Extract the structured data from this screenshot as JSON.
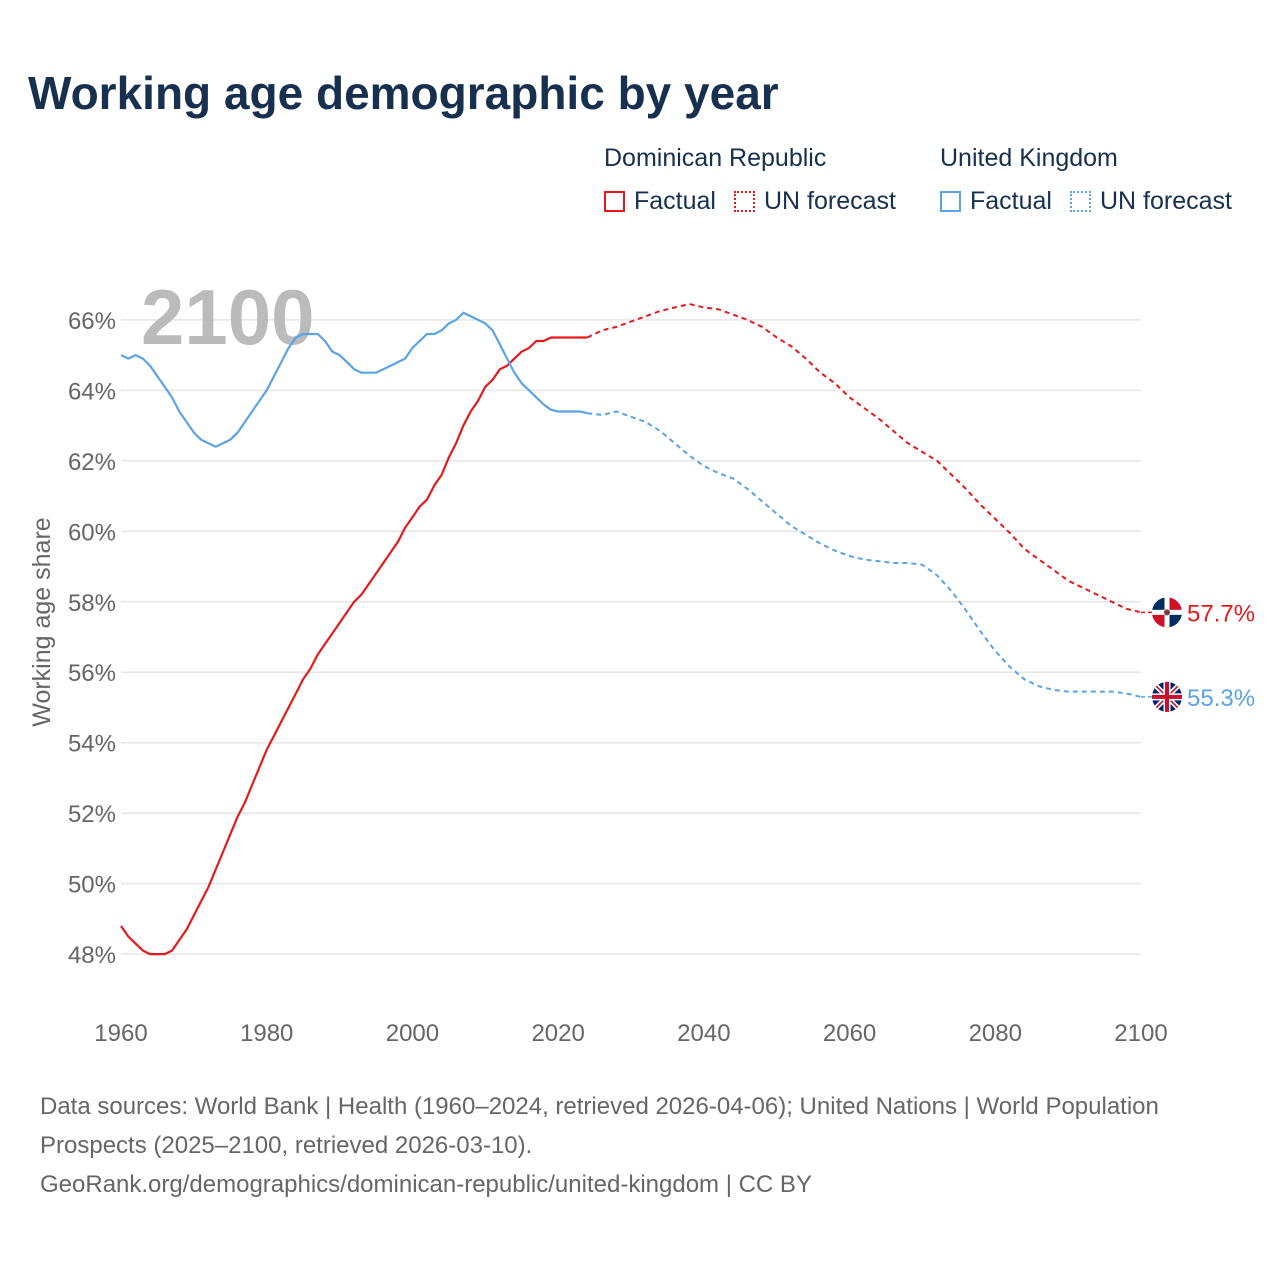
{
  "title": "Working age demographic by year",
  "legend": [
    {
      "group": "Dominican Republic",
      "items": [
        {
          "label": "Factual",
          "color": "#e41a1c",
          "style": "solid"
        },
        {
          "label": "UN forecast",
          "color": "#e41a1c",
          "style": "dotted"
        }
      ]
    },
    {
      "group": "United Kingdom",
      "items": [
        {
          "label": "Factual",
          "color": "#5ba3e5",
          "style": "solid"
        },
        {
          "label": "UN forecast",
          "color": "#5ba3e5",
          "style": "dotted"
        }
      ]
    }
  ],
  "year_watermark": "2100",
  "chart_data": {
    "type": "line",
    "title": "Working age demographic by year",
    "xlabel": "",
    "ylabel": "Working age share",
    "xlim": [
      1960,
      2100
    ],
    "ylim": [
      46.5,
      67.5
    ],
    "x_ticks": [
      1960,
      1980,
      2000,
      2020,
      2040,
      2060,
      2080,
      2100
    ],
    "y_ticks": [
      48,
      50,
      52,
      54,
      56,
      58,
      60,
      62,
      64,
      66
    ],
    "y_tick_suffix": "%",
    "grid": true,
    "series": [
      {
        "name": "Dominican Republic",
        "color": "#e41a1c",
        "factual": {
          "x": [
            1960,
            1961,
            1962,
            1963,
            1964,
            1965,
            1966,
            1967,
            1968,
            1969,
            1970,
            1971,
            1972,
            1973,
            1974,
            1975,
            1976,
            1977,
            1978,
            1979,
            1980,
            1981,
            1982,
            1983,
            1984,
            1985,
            1986,
            1987,
            1988,
            1989,
            1990,
            1991,
            1992,
            1993,
            1994,
            1995,
            1996,
            1997,
            1998,
            1999,
            2000,
            2001,
            2002,
            2003,
            2004,
            2005,
            2006,
            2007,
            2008,
            2009,
            2010,
            2011,
            2012,
            2013,
            2014,
            2015,
            2016,
            2017,
            2018,
            2019,
            2020,
            2021,
            2022,
            2023,
            2024
          ],
          "y": [
            48.8,
            48.5,
            48.3,
            48.1,
            48.0,
            48.0,
            48.0,
            48.1,
            48.4,
            48.7,
            49.1,
            49.5,
            49.9,
            50.4,
            50.9,
            51.4,
            51.9,
            52.3,
            52.8,
            53.3,
            53.8,
            54.2,
            54.6,
            55.0,
            55.4,
            55.8,
            56.1,
            56.5,
            56.8,
            57.1,
            57.4,
            57.7,
            58.0,
            58.2,
            58.5,
            58.8,
            59.1,
            59.4,
            59.7,
            60.1,
            60.4,
            60.7,
            60.9,
            61.3,
            61.6,
            62.1,
            62.5,
            63.0,
            63.4,
            63.7,
            64.1,
            64.3,
            64.6,
            64.7,
            64.9,
            65.1,
            65.2,
            65.4,
            65.4,
            65.5,
            65.5,
            65.5,
            65.5,
            65.5,
            65.5
          ]
        },
        "forecast": {
          "x": [
            2024,
            2026,
            2028,
            2030,
            2032,
            2034,
            2036,
            2038,
            2040,
            2042,
            2044,
            2046,
            2048,
            2050,
            2052,
            2054,
            2056,
            2058,
            2060,
            2062,
            2064,
            2066,
            2068,
            2070,
            2072,
            2074,
            2076,
            2078,
            2080,
            2082,
            2084,
            2086,
            2088,
            2090,
            2092,
            2094,
            2096,
            2098,
            2100
          ],
          "y": [
            65.5,
            65.7,
            65.8,
            65.95,
            66.1,
            66.25,
            66.35,
            66.45,
            66.35,
            66.3,
            66.15,
            66.0,
            65.8,
            65.5,
            65.25,
            64.9,
            64.5,
            64.2,
            63.8,
            63.5,
            63.2,
            62.85,
            62.5,
            62.25,
            62.0,
            61.6,
            61.2,
            60.75,
            60.35,
            59.95,
            59.5,
            59.2,
            58.9,
            58.6,
            58.4,
            58.2,
            58.0,
            57.8,
            57.7
          ]
        },
        "end_value": 57.7,
        "end_label": "57.7%"
      },
      {
        "name": "United Kingdom",
        "color": "#5ba3e5",
        "factual": {
          "x": [
            1960,
            1961,
            1962,
            1963,
            1964,
            1965,
            1966,
            1967,
            1968,
            1969,
            1970,
            1971,
            1972,
            1973,
            1974,
            1975,
            1976,
            1977,
            1978,
            1979,
            1980,
            1981,
            1982,
            1983,
            1984,
            1985,
            1986,
            1987,
            1988,
            1989,
            1990,
            1991,
            1992,
            1993,
            1994,
            1995,
            1996,
            1997,
            1998,
            1999,
            2000,
            2001,
            2002,
            2003,
            2004,
            2005,
            2006,
            2007,
            2008,
            2009,
            2010,
            2011,
            2012,
            2013,
            2014,
            2015,
            2016,
            2017,
            2018,
            2019,
            2020,
            2021,
            2022,
            2023,
            2024
          ],
          "y": [
            65.0,
            64.9,
            65.0,
            64.9,
            64.7,
            64.4,
            64.1,
            63.8,
            63.4,
            63.1,
            62.8,
            62.6,
            62.5,
            62.4,
            62.5,
            62.6,
            62.8,
            63.1,
            63.4,
            63.7,
            64.0,
            64.4,
            64.8,
            65.2,
            65.5,
            65.6,
            65.6,
            65.6,
            65.4,
            65.1,
            65.0,
            64.8,
            64.6,
            64.5,
            64.5,
            64.5,
            64.6,
            64.7,
            64.8,
            64.9,
            65.2,
            65.4,
            65.6,
            65.6,
            65.7,
            65.9,
            66.0,
            66.2,
            66.1,
            66.0,
            65.9,
            65.7,
            65.3,
            64.9,
            64.5,
            64.2,
            64.0,
            63.8,
            63.6,
            63.45,
            63.4,
            63.4,
            63.4,
            63.4,
            63.35
          ]
        },
        "forecast": {
          "x": [
            2024,
            2026,
            2028,
            2030,
            2032,
            2034,
            2036,
            2038,
            2040,
            2042,
            2044,
            2046,
            2048,
            2050,
            2052,
            2054,
            2056,
            2058,
            2060,
            2062,
            2064,
            2066,
            2068,
            2070,
            2072,
            2074,
            2076,
            2078,
            2080,
            2082,
            2084,
            2086,
            2088,
            2090,
            2092,
            2094,
            2096,
            2098,
            2100
          ],
          "y": [
            63.35,
            63.3,
            63.4,
            63.25,
            63.1,
            62.85,
            62.5,
            62.15,
            61.85,
            61.65,
            61.5,
            61.2,
            60.85,
            60.5,
            60.15,
            59.9,
            59.65,
            59.45,
            59.3,
            59.2,
            59.15,
            59.1,
            59.1,
            59.05,
            58.75,
            58.3,
            57.75,
            57.15,
            56.6,
            56.15,
            55.8,
            55.6,
            55.5,
            55.45,
            55.45,
            55.45,
            55.45,
            55.4,
            55.3
          ]
        },
        "end_value": 55.3,
        "end_label": "55.3%"
      }
    ]
  },
  "footer": {
    "line1": "Data sources: World Bank | Health (1960–2024, retrieved 2026-04-06); United Nations | World Population Prospects (2025–2100, retrieved 2026-03-10).",
    "line2": "GeoRank.org/demographics/dominican-republic/united-kingdom | CC BY"
  }
}
